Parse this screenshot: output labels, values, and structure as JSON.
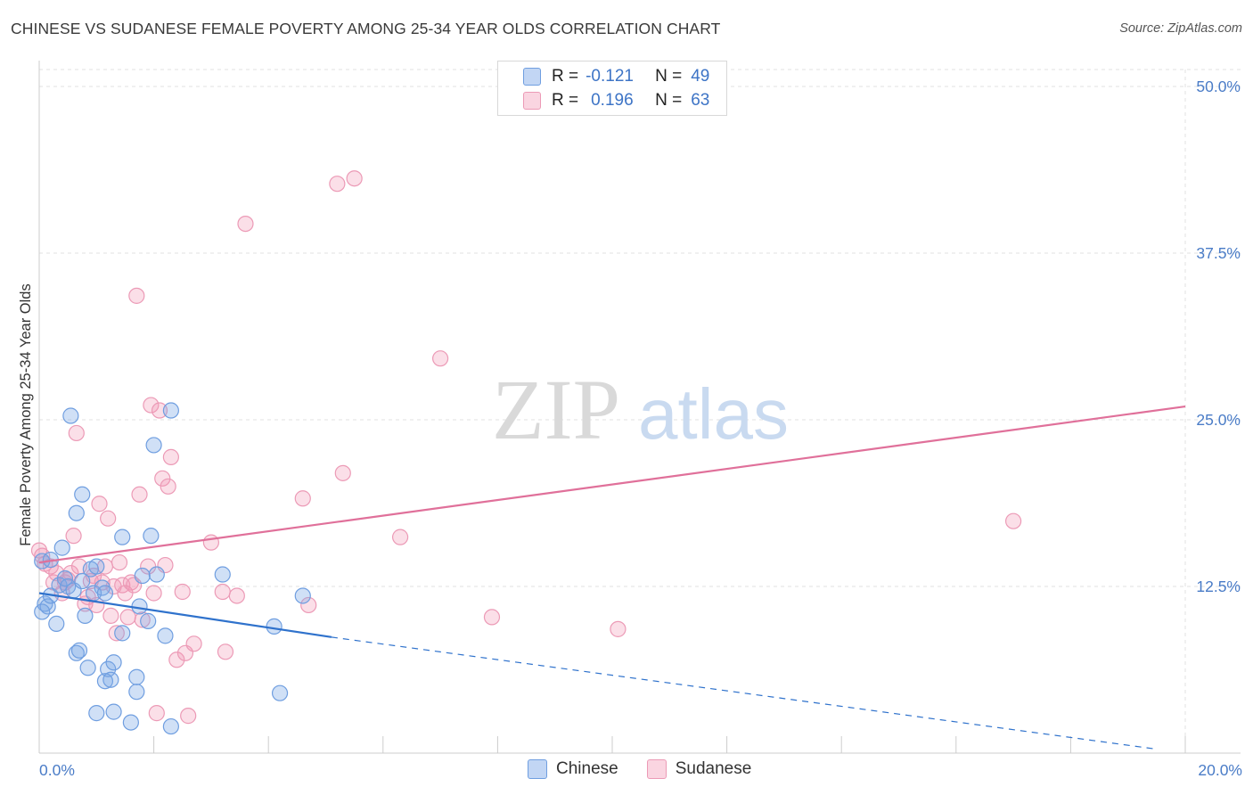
{
  "title": "CHINESE VS SUDANESE FEMALE POVERTY AMONG 25-34 YEAR OLDS CORRELATION CHART",
  "source": "Source: ZipAtlas.com",
  "watermark": {
    "zip": "ZIP",
    "atlas": "atlas"
  },
  "legend": {
    "r_label": "R =",
    "n_label": "N =",
    "rows": [
      {
        "r": "-0.121",
        "n": "49",
        "color": "#6f9ee0"
      },
      {
        "r": "0.196",
        "n": "63",
        "color": "#ec9ab6"
      }
    ]
  },
  "bottom_legend": {
    "items": [
      "Chinese",
      "Sudanese"
    ]
  },
  "chart_data": {
    "type": "scatter",
    "title": "CHINESE VS SUDANESE FEMALE POVERTY AMONG 25-34 YEAR OLDS CORRELATION CHART",
    "xlabel": "",
    "ylabel": "Female Poverty Among 25-34 Year Olds",
    "xlim": [
      0,
      20
    ],
    "ylim": [
      0,
      52
    ],
    "x_tick_labels": [
      "0.0%",
      "20.0%"
    ],
    "y_ticks": [
      12.5,
      25.0,
      37.5,
      50.0
    ],
    "y_tick_labels": [
      "12.5%",
      "25.0%",
      "37.5%",
      "50.0%"
    ],
    "grid": true,
    "legend_position": "top-center",
    "series": [
      {
        "name": "Chinese",
        "color": "#6f9ee0",
        "trend": {
          "x": [
            0,
            5.1
          ],
          "y": [
            12.0,
            8.7
          ],
          "dashed_to": [
            19.5,
            0.3
          ]
        },
        "points": [
          [
            0.05,
            14.4
          ],
          [
            0.1,
            11.2
          ],
          [
            0.15,
            11.0
          ],
          [
            0.2,
            11.8
          ],
          [
            0.3,
            9.7
          ],
          [
            0.35,
            12.6
          ],
          [
            0.4,
            15.4
          ],
          [
            0.45,
            13.1
          ],
          [
            0.5,
            12.5
          ],
          [
            0.55,
            25.3
          ],
          [
            0.6,
            12.2
          ],
          [
            0.65,
            18.0
          ],
          [
            0.65,
            7.5
          ],
          [
            0.7,
            7.7
          ],
          [
            0.75,
            12.9
          ],
          [
            0.75,
            19.4
          ],
          [
            0.8,
            10.3
          ],
          [
            0.85,
            6.4
          ],
          [
            0.9,
            13.8
          ],
          [
            0.95,
            12.0
          ],
          [
            1.0,
            14.0
          ],
          [
            1.0,
            3.0
          ],
          [
            1.1,
            12.4
          ],
          [
            1.15,
            5.4
          ],
          [
            1.2,
            6.3
          ],
          [
            1.25,
            5.5
          ],
          [
            1.3,
            3.1
          ],
          [
            1.3,
            6.8
          ],
          [
            1.45,
            9.0
          ],
          [
            1.45,
            16.2
          ],
          [
            1.6,
            2.3
          ],
          [
            1.7,
            4.6
          ],
          [
            1.7,
            5.7
          ],
          [
            1.75,
            11.0
          ],
          [
            1.8,
            13.3
          ],
          [
            1.9,
            9.9
          ],
          [
            1.95,
            16.3
          ],
          [
            2.0,
            23.1
          ],
          [
            2.05,
            13.4
          ],
          [
            2.2,
            8.8
          ],
          [
            2.3,
            2.0
          ],
          [
            2.3,
            25.7
          ],
          [
            3.2,
            13.4
          ],
          [
            4.1,
            9.5
          ],
          [
            4.2,
            4.5
          ],
          [
            4.6,
            11.8
          ],
          [
            0.05,
            10.6
          ],
          [
            0.2,
            14.5
          ],
          [
            1.15,
            12.0
          ]
        ]
      },
      {
        "name": "Sudanese",
        "color": "#ec9ab6",
        "trend": {
          "x": [
            0,
            20
          ],
          "y": [
            14.3,
            26.0
          ]
        },
        "points": [
          [
            0.05,
            14.8
          ],
          [
            0.1,
            14.2
          ],
          [
            0.2,
            14.0
          ],
          [
            0.25,
            12.8
          ],
          [
            0.3,
            13.5
          ],
          [
            0.4,
            12.0
          ],
          [
            0.45,
            12.8
          ],
          [
            0.5,
            13.0
          ],
          [
            0.55,
            13.5
          ],
          [
            0.6,
            16.3
          ],
          [
            0.65,
            24.0
          ],
          [
            0.7,
            14.0
          ],
          [
            0.8,
            11.2
          ],
          [
            0.85,
            11.7
          ],
          [
            0.9,
            12.9
          ],
          [
            0.95,
            13.3
          ],
          [
            1.0,
            11.1
          ],
          [
            1.05,
            18.7
          ],
          [
            1.1,
            12.8
          ],
          [
            1.15,
            14.0
          ],
          [
            1.2,
            17.6
          ],
          [
            1.25,
            10.3
          ],
          [
            1.3,
            12.5
          ],
          [
            1.35,
            9.0
          ],
          [
            1.4,
            14.3
          ],
          [
            1.45,
            12.6
          ],
          [
            1.5,
            12.0
          ],
          [
            1.55,
            10.2
          ],
          [
            1.6,
            12.8
          ],
          [
            1.65,
            12.6
          ],
          [
            1.7,
            34.3
          ],
          [
            1.75,
            19.4
          ],
          [
            1.8,
            10.0
          ],
          [
            1.9,
            14.0
          ],
          [
            1.95,
            26.1
          ],
          [
            2.0,
            12.0
          ],
          [
            2.05,
            3.0
          ],
          [
            2.1,
            25.7
          ],
          [
            2.15,
            20.6
          ],
          [
            2.2,
            14.1
          ],
          [
            2.25,
            20.0
          ],
          [
            2.3,
            22.2
          ],
          [
            2.4,
            7.0
          ],
          [
            2.5,
            12.1
          ],
          [
            2.55,
            7.5
          ],
          [
            2.6,
            2.8
          ],
          [
            2.7,
            8.2
          ],
          [
            3.0,
            15.8
          ],
          [
            3.2,
            12.1
          ],
          [
            3.25,
            7.6
          ],
          [
            3.45,
            11.8
          ],
          [
            3.6,
            39.7
          ],
          [
            4.6,
            19.1
          ],
          [
            4.7,
            11.1
          ],
          [
            5.2,
            42.7
          ],
          [
            5.3,
            21.0
          ],
          [
            5.5,
            43.1
          ],
          [
            6.3,
            16.2
          ],
          [
            7.0,
            29.6
          ],
          [
            7.9,
            10.2
          ],
          [
            10.1,
            9.3
          ],
          [
            17.0,
            17.4
          ],
          [
            0.0,
            15.2
          ]
        ]
      }
    ]
  }
}
